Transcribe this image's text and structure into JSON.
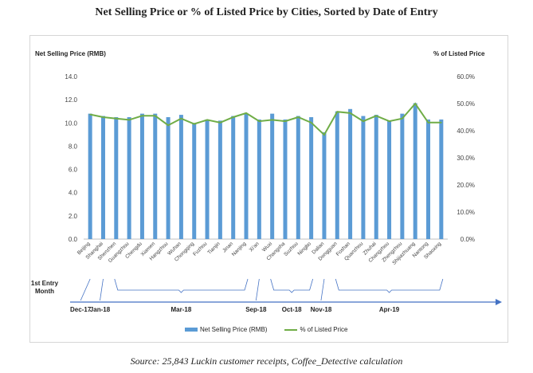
{
  "title": "Net Selling Price or % of Listed Price by Cities, Sorted by Date of Entry",
  "source": "Source: 25,843 Luckin customer receipts, Coffee_Detective calculation",
  "colors": {
    "bar": "#5b9bd5",
    "line": "#70ad47",
    "axis": "#4472c4"
  },
  "entry_axis_label": "1st Entry Month",
  "chart_data": {
    "type": "bar",
    "ylabel": "Net Selling Price (RMB)",
    "y2label": "% of Listed Price",
    "ylim": [
      0,
      14
    ],
    "y2lim": [
      0,
      0.6
    ],
    "yticks": [
      "0.0",
      "2.0",
      "4.0",
      "6.0",
      "8.0",
      "10.0",
      "12.0",
      "14.0"
    ],
    "y2ticks": [
      "0.0%",
      "10.0%",
      "20.0%",
      "30.0%",
      "40.0%",
      "50.0%",
      "60.0%"
    ],
    "categories": [
      "Beijing",
      "Shanghai",
      "Shenzhen",
      "Guangzhou",
      "Chengdu",
      "Xiamen",
      "Hangzhou",
      "Wuhan",
      "Chongqing",
      "Fuzhou",
      "Tianjin",
      "Jinan",
      "Nanjing",
      "Xi'an",
      "Wuxi",
      "Changsha",
      "Suzhou",
      "Ningbo",
      "Dalian",
      "Dongguan",
      "Foshan",
      "Quanzhou",
      "Zhuhai",
      "Changzhou",
      "Zhengzhou",
      "Shijiazhuang",
      "Nantong",
      "Shaoxing"
    ],
    "series": [
      {
        "name": "Net Selling Price (RMB)",
        "type": "bar",
        "axis": "left",
        "values": [
          10.8,
          10.6,
          10.5,
          10.5,
          10.8,
          10.8,
          10.5,
          10.7,
          10.0,
          10.3,
          10.2,
          10.6,
          10.8,
          10.3,
          10.8,
          10.3,
          10.6,
          10.5,
          9.2,
          11.0,
          11.2,
          10.6,
          10.7,
          10.2,
          10.8,
          11.7,
          10.3,
          10.3
        ]
      },
      {
        "name": "% of Listed Price",
        "type": "line",
        "axis": "right",
        "values": [
          0.46,
          0.45,
          0.445,
          0.44,
          0.455,
          0.455,
          0.42,
          0.445,
          0.425,
          0.44,
          0.43,
          0.45,
          0.465,
          0.435,
          0.44,
          0.435,
          0.45,
          0.43,
          0.385,
          0.47,
          0.465,
          0.435,
          0.455,
          0.435,
          0.445,
          0.5,
          0.43,
          0.43
        ]
      }
    ],
    "legend": "bottom",
    "grid": false,
    "entry_months": [
      {
        "label": "Dec-17",
        "from": 0,
        "to": 0
      },
      {
        "label": "Jan-18",
        "from": 1,
        "to": 1
      },
      {
        "label": "Mar-18",
        "from": 2,
        "to": 12
      },
      {
        "label": "Sep-18",
        "from": 13,
        "to": 13
      },
      {
        "label": "Oct-18",
        "from": 14,
        "to": 17
      },
      {
        "label": "Nov-18",
        "from": 18,
        "to": 18
      },
      {
        "label": "Apr-19",
        "from": 19,
        "to": 27
      }
    ]
  }
}
